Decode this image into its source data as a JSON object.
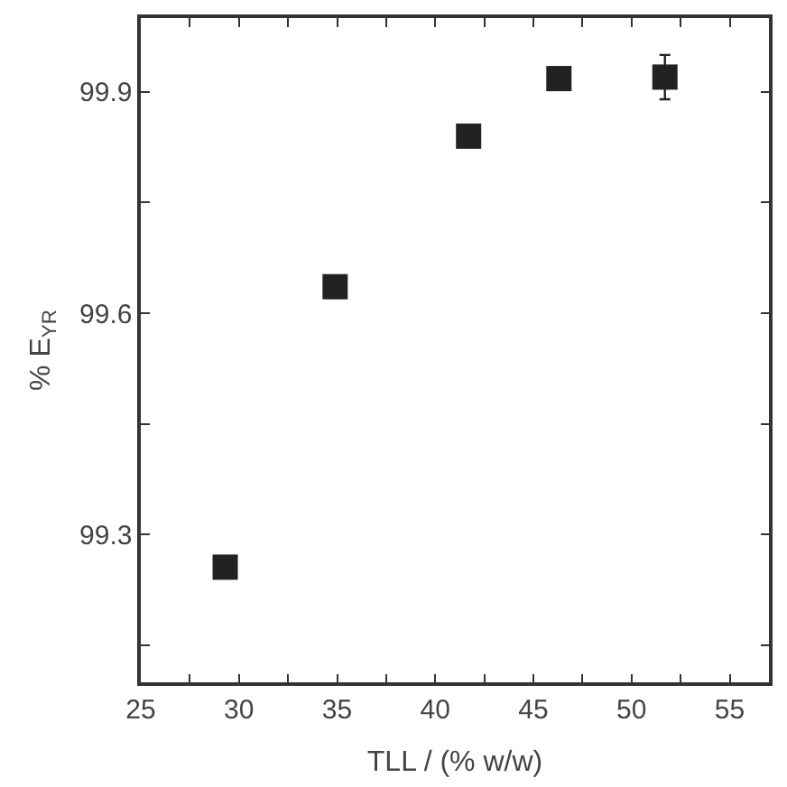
{
  "chart_data": {
    "type": "scatter",
    "xlabel": "TLL / (% w/w)",
    "ylabel": "% E$_{YR}$",
    "x": [
      29.3,
      34.9,
      41.7,
      46.3,
      51.7
    ],
    "series": [
      {
        "color": "#222222",
        "values": [
          99.256,
          99.636,
          99.84,
          99.918,
          99.92
        ],
        "errors": [
          null,
          null,
          null,
          null,
          0.03
        ]
      }
    ],
    "marker": "square",
    "xlim": [
      25,
      57
    ],
    "ylim": [
      99.1,
      100.0
    ],
    "xticks": [
      25,
      {
        "value": 27.5,
        "label": null
      },
      30,
      {
        "value": 32.5,
        "label": null
      },
      35,
      {
        "value": 37.5,
        "label": null
      },
      40,
      {
        "value": 42.5,
        "label": null
      },
      45,
      {
        "value": 47.5,
        "label": null
      },
      50,
      {
        "value": 52.5,
        "label": null
      },
      55
    ],
    "yticks": [
      {
        "value": 99.15,
        "label": null
      },
      99.3,
      {
        "value": 99.45,
        "label": null
      },
      99.6,
      {
        "value": 99.75,
        "label": null
      },
      99.9
    ]
  }
}
